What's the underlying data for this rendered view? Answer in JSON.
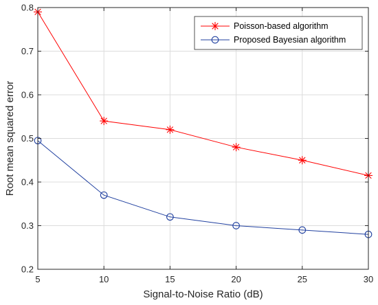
{
  "chart_data": {
    "type": "line",
    "xlabel": "Signal-to-Noise Ratio (dB)",
    "ylabel": "Root mean squared error",
    "xlim": [
      5,
      30
    ],
    "ylim": [
      0.2,
      0.8
    ],
    "xticks": [
      5,
      10,
      15,
      20,
      25,
      30
    ],
    "yticks": [
      0.2,
      0.3,
      0.4,
      0.5,
      0.6,
      0.7,
      0.8
    ],
    "xtick_labels": [
      "5",
      "10",
      "15",
      "20",
      "25",
      "30"
    ],
    "ytick_labels": [
      "0.2",
      "0.3",
      "0.4",
      "0.5",
      "0.6",
      "0.7",
      "0.8"
    ],
    "grid": true,
    "legend_position": "top-right",
    "x": [
      5,
      10,
      15,
      20,
      25,
      30
    ],
    "series": [
      {
        "name": "Poisson-based algorithm",
        "values": [
          0.79,
          0.54,
          0.52,
          0.48,
          0.45,
          0.415
        ],
        "color": "#ff0000",
        "marker": "asterisk"
      },
      {
        "name": "Proposed Bayesian algorithm",
        "values": [
          0.495,
          0.37,
          0.32,
          0.3,
          0.29,
          0.28
        ],
        "color": "#1f3f9f",
        "marker": "circle"
      }
    ]
  }
}
